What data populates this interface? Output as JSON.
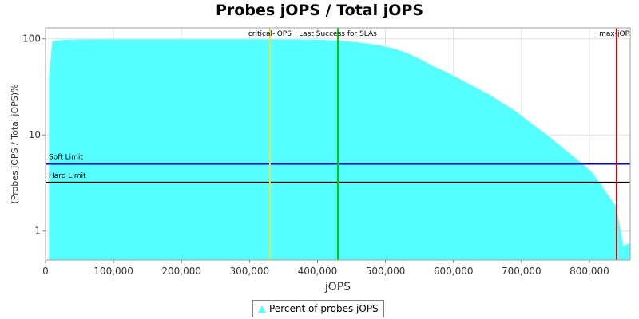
{
  "chart_data": {
    "type": "area",
    "title": "Probes jOPS / Total jOPS",
    "xlabel": "jOPS",
    "ylabel": "(Probes jOPS / Total jOPS)%",
    "y_scale": "log",
    "xlim": [
      0,
      860000
    ],
    "ylim": [
      0.5,
      130
    ],
    "x_ticks": [
      0,
      100000,
      200000,
      300000,
      400000,
      500000,
      600000,
      700000,
      800000
    ],
    "x_tick_labels": [
      "0",
      "100,000",
      "200,000",
      "300,000",
      "400,000",
      "500,000",
      "600,000",
      "700,000",
      "800,000"
    ],
    "y_ticks": [
      1,
      10,
      100
    ],
    "y_tick_labels": [
      "1",
      "10",
      "100"
    ],
    "grid": true,
    "legend_position": "bottom",
    "series": [
      {
        "name": "Percent of probes jOPS",
        "color": "#55ffff",
        "x": [
          5000,
          10000,
          30000,
          80000,
          150000,
          250000,
          330000,
          400000,
          430000,
          460000,
          490000,
          510000,
          530000,
          550000,
          570000,
          590000,
          610000,
          630000,
          650000,
          670000,
          690000,
          710000,
          730000,
          750000,
          770000,
          790000,
          805000,
          815000,
          825000,
          835000,
          840000,
          845000,
          850000,
          860000
        ],
        "y": [
          40,
          95,
          98,
          99,
          99,
          99,
          99,
          98,
          96,
          92,
          86,
          80,
          72,
          62,
          52,
          45,
          38,
          32,
          27,
          22,
          18,
          14,
          11,
          8.5,
          6.5,
          5,
          4,
          3.2,
          2.5,
          2.0,
          1.8,
          1.1,
          0.7,
          0.75
        ]
      }
    ],
    "annotations": {
      "vertical": [
        {
          "label": "critical-jOPS",
          "x": 330000,
          "color": "#e6e24a"
        },
        {
          "label": "Last Success for SLAs",
          "x": 430000,
          "color": "#00cc00"
        },
        {
          "label": "max-jOP",
          "x": 840000,
          "color": "#dd0000"
        }
      ],
      "horizontal": [
        {
          "label": "Soft Limit",
          "y": 5,
          "color": "#0000cc"
        },
        {
          "label": "Hard Limit",
          "y": 3.2,
          "color": "#000000"
        }
      ]
    }
  }
}
